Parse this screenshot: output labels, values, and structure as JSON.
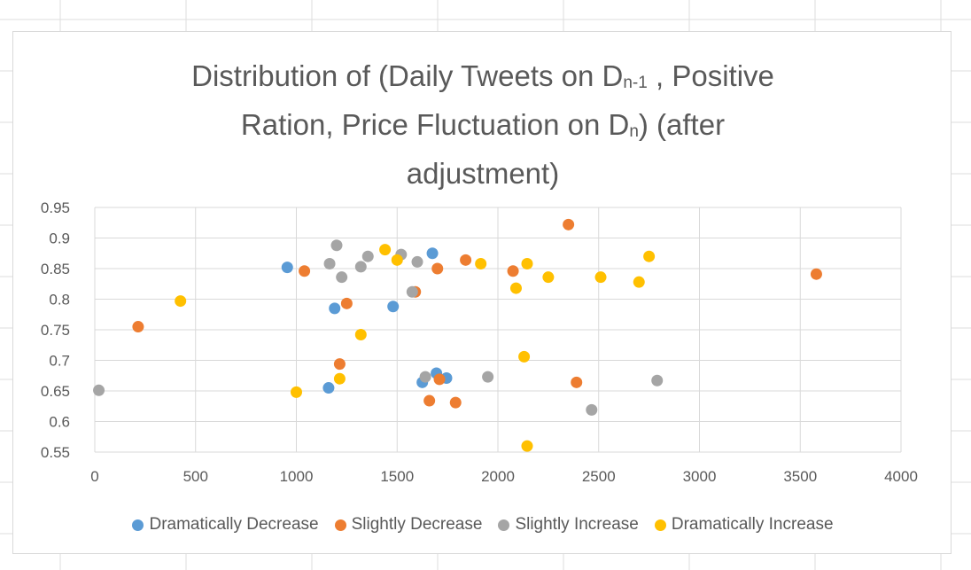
{
  "colors": {
    "dramatically_decrease": "#5b9bd5",
    "slightly_decrease": "#ed7d31",
    "slightly_increase": "#a5a5a5",
    "dramatically_increase": "#ffc000",
    "text": "#595959",
    "gridline": "#d9d9d9"
  },
  "chart_data": {
    "type": "scatter",
    "title": {
      "line1_pre": "Distribution of (Daily Tweets on D",
      "line1_sub": "n-1",
      "line1_post": " , Positive",
      "line2_pre": "Ration, Price Fluctuation on D",
      "line2_sub": "n",
      "line2_post": ") (after",
      "line3": "adjustment)"
    },
    "xlim": [
      0,
      4000
    ],
    "ylim": [
      0.55,
      0.95
    ],
    "x_ticks": [
      "0",
      "500",
      "1000",
      "1500",
      "2000",
      "2500",
      "3000",
      "3500",
      "4000"
    ],
    "y_ticks": [
      "0.55",
      "0.6",
      "0.65",
      "0.7",
      "0.75",
      "0.8",
      "0.85",
      "0.9",
      "0.95"
    ],
    "grid": true,
    "legend_position": "bottom",
    "series": [
      {
        "name": "Dramatically Decrease",
        "color_key": "dramatically_decrease",
        "points": [
          [
            955,
            0.852
          ],
          [
            1190,
            0.785
          ],
          [
            1480,
            0.788
          ],
          [
            1675,
            0.875
          ],
          [
            1160,
            0.655
          ],
          [
            1625,
            0.664
          ],
          [
            1695,
            0.679
          ],
          [
            1745,
            0.671
          ]
        ]
      },
      {
        "name": "Slightly Decrease",
        "color_key": "slightly_decrease",
        "points": [
          [
            215,
            0.755
          ],
          [
            1040,
            0.846
          ],
          [
            1250,
            0.793
          ],
          [
            1215,
            0.694
          ],
          [
            1590,
            0.812
          ],
          [
            1700,
            0.85
          ],
          [
            1710,
            0.669
          ],
          [
            1660,
            0.634
          ],
          [
            1790,
            0.631
          ],
          [
            1840,
            0.864
          ],
          [
            2075,
            0.846
          ],
          [
            2350,
            0.922
          ],
          [
            2390,
            0.664
          ],
          [
            3580,
            0.841
          ]
        ]
      },
      {
        "name": "Slightly Increase",
        "color_key": "slightly_increase",
        "points": [
          [
            20,
            0.651
          ],
          [
            1165,
            0.858
          ],
          [
            1200,
            0.888
          ],
          [
            1225,
            0.836
          ],
          [
            1320,
            0.853
          ],
          [
            1355,
            0.87
          ],
          [
            1520,
            0.873
          ],
          [
            1575,
            0.812
          ],
          [
            1600,
            0.861
          ],
          [
            1640,
            0.673
          ],
          [
            1950,
            0.673
          ],
          [
            2465,
            0.619
          ],
          [
            2790,
            0.667
          ]
        ]
      },
      {
        "name": "Dramatically Increase",
        "color_key": "dramatically_increase",
        "points": [
          [
            425,
            0.797
          ],
          [
            1000,
            0.648
          ],
          [
            1215,
            0.67
          ],
          [
            1320,
            0.742
          ],
          [
            1440,
            0.881
          ],
          [
            1500,
            0.864
          ],
          [
            1915,
            0.858
          ],
          [
            2090,
            0.818
          ],
          [
            2130,
            0.706
          ],
          [
            2145,
            0.858
          ],
          [
            2145,
            0.56
          ],
          [
            2250,
            0.836
          ],
          [
            2510,
            0.836
          ],
          [
            2700,
            0.828
          ],
          [
            2750,
            0.87
          ]
        ]
      }
    ]
  }
}
